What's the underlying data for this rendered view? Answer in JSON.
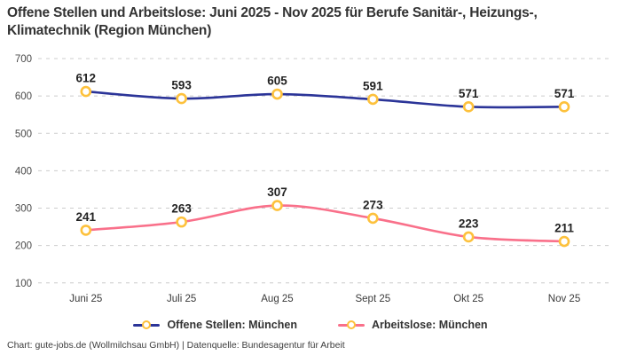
{
  "title": "Offene Stellen und Arbeitslose: Juni 2025 - Nov 2025 für Berufe Sanitär-, Heizungs-, Klimatechnik (Region München)",
  "footer": "Chart: gute-jobs.de (Wollmilchsau GmbH) | Datenquelle: Bundesagentur für Arbeit",
  "colors": {
    "series_blue": "#2B3498",
    "series_pink": "#F9708A",
    "marker_stroke": "#FDC13C",
    "marker_fill": "#FFFFFF",
    "grid": "#CCCCCC",
    "tick_text": "#4A4A4A",
    "axis_text": "#3A3A3A",
    "label_text": "#222222"
  },
  "chart_data": {
    "type": "line",
    "title": "Offene Stellen und Arbeitslose: Juni 2025 - Nov 2025 für Berufe Sanitär-, Heizungs-, Klimatechnik (Region München)",
    "categories": [
      "Juni 25",
      "Juli 25",
      "Aug 25",
      "Sept 25",
      "Okt 25",
      "Nov 25"
    ],
    "series": [
      {
        "name": "Offene Stellen: München",
        "slug": "offene-stellen",
        "color_key": "series_blue",
        "values": [
          612,
          593,
          605,
          591,
          571,
          571
        ]
      },
      {
        "name": "Arbeitslose: München",
        "slug": "arbeitslose",
        "color_key": "series_pink",
        "values": [
          241,
          263,
          307,
          273,
          223,
          211
        ]
      }
    ],
    "yticks": [
      700,
      600,
      500,
      400,
      300,
      200,
      100
    ],
    "ylim": [
      100,
      700
    ],
    "xlabel": "",
    "ylabel": "",
    "grid": "horizontal-dashed",
    "legend_position": "bottom",
    "marker": "circle-gold-stroke-white-fill",
    "data_labels": true
  }
}
